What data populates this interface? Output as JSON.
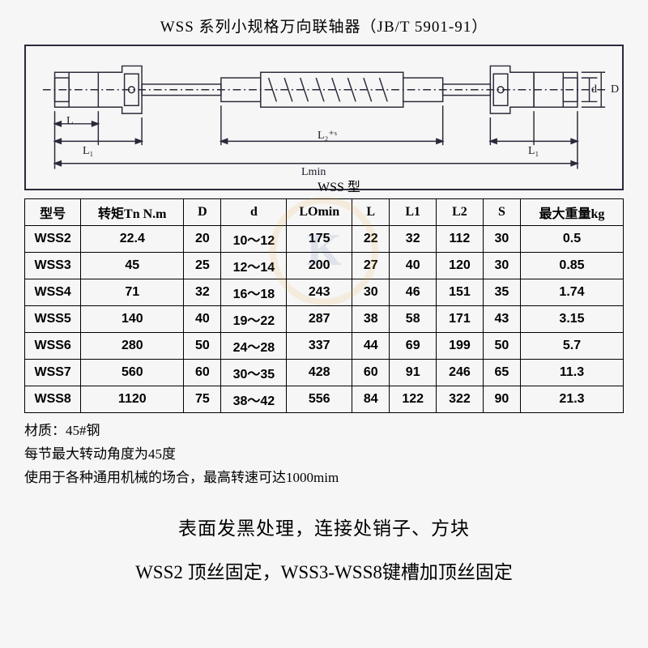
{
  "title": "WSS 系列小规格万向联轴器（JB/T 5901-91）",
  "diagram": {
    "labels": {
      "L": "L",
      "L1_left": "L₁",
      "L2s": "L₂⁺ˢ",
      "L1_right": "L₁",
      "Lmin": "Lmin",
      "d": "d",
      "D": "D",
      "type": "WSS 型"
    }
  },
  "table": {
    "headers": [
      "型号",
      "转矩Tn N.m",
      "D",
      "d",
      "LOmin",
      "L",
      "L1",
      "L2",
      "S",
      "最大重量kg"
    ],
    "col_widths": [
      "60",
      "110",
      "40",
      "70",
      "70",
      "40",
      "50",
      "50",
      "40",
      "110"
    ],
    "rows": [
      [
        "WSS2",
        "22.4",
        "20",
        "10～12",
        "175",
        "22",
        "32",
        "112",
        "30",
        "0.5"
      ],
      [
        "WSS3",
        "45",
        "25",
        "12～14",
        "200",
        "27",
        "40",
        "120",
        "30",
        "0.85"
      ],
      [
        "WSS4",
        "71",
        "32",
        "16～18",
        "243",
        "30",
        "46",
        "151",
        "35",
        "1.74"
      ],
      [
        "WSS5",
        "140",
        "40",
        "19～22",
        "287",
        "38",
        "58",
        "171",
        "43",
        "3.15"
      ],
      [
        "WSS6",
        "280",
        "50",
        "24～28",
        "337",
        "44",
        "69",
        "199",
        "50",
        "5.7"
      ],
      [
        "WSS7",
        "560",
        "60",
        "30～35",
        "428",
        "60",
        "91",
        "246",
        "65",
        "11.3"
      ],
      [
        "WSS8",
        "1120",
        "75",
        "38～42",
        "556",
        "84",
        "122",
        "322",
        "90",
        "21.3"
      ]
    ]
  },
  "notes": {
    "line1": "材质：45#钢",
    "line2": "每节最大转动角度为45度",
    "line3": "使用于各种通用机械的场合，最高转速可达1000mim"
  },
  "footer": {
    "line1": "表面发黑处理，连接处销子、方块",
    "line2": "WSS2 顶丝固定，WSS3-WSS8键槽加顶丝固定"
  }
}
